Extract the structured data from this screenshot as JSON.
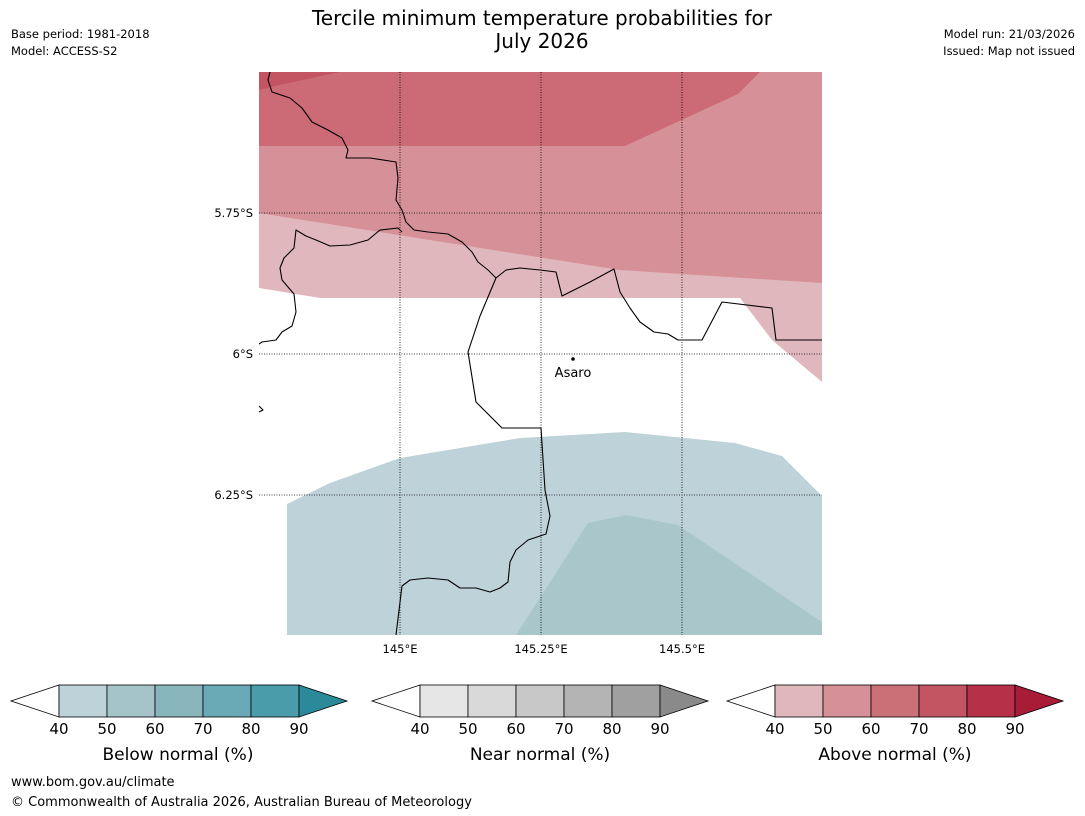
{
  "header": {
    "title_line1": "Tercile minimum temperature probabilities for",
    "title_line2": "July 2026",
    "base_period": "Base period: 1981-2018",
    "model": "Model: ACCESS-S2",
    "model_run": "Model run: 21/03/2026",
    "issued": "Issued: Map not issued"
  },
  "map": {
    "lat_labels": [
      "5.75°S",
      "6°S",
      "6.25°S"
    ],
    "lon_labels": [
      "145°E",
      "145.25°E",
      "145.5°E"
    ],
    "place": {
      "name": "Asaro"
    }
  },
  "colorbars": [
    {
      "label": "Below normal (%)",
      "ticks": [
        "40",
        "50",
        "60",
        "70",
        "80",
        "90"
      ],
      "colors": [
        "#bed3d9",
        "#a5c4c9",
        "#88b5bc",
        "#6aaab7",
        "#4a9cab",
        "#2a8a9a"
      ]
    },
    {
      "label": "Near normal (%)",
      "ticks": [
        "40",
        "50",
        "60",
        "70",
        "80",
        "90"
      ],
      "colors": [
        "#e6e6e6",
        "#d9d9d9",
        "#c8c8c8",
        "#b4b4b4",
        "#a0a0a0",
        "#8a8a8a"
      ]
    },
    {
      "label": "Above normal (%)",
      "ticks": [
        "40",
        "50",
        "60",
        "70",
        "80",
        "90"
      ],
      "colors": [
        "#e0b7bc",
        "#d69097",
        "#cc7078",
        "#c25561",
        "#b63048",
        "#a81c38"
      ]
    }
  ],
  "footer": {
    "url": "www.bom.gov.au/climate",
    "copyright": "© Commonwealth of Australia 2026, Australian Bureau of Meteorology"
  }
}
